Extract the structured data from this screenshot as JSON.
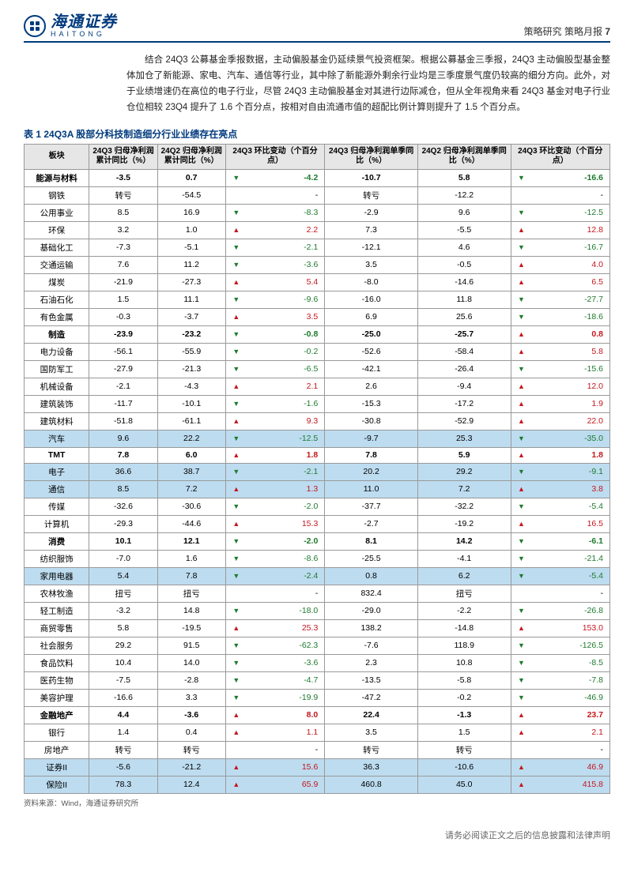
{
  "header": {
    "logo_cn": "海通证券",
    "logo_en": "HAITONG",
    "right_text": "策略研究 策略月报",
    "page_num": "7"
  },
  "body_para": "结合 24Q3 公募基金季报数据，主动偏股基金仍延续景气投资框架。根据公募基金三季报，24Q3 主动偏股型基金整体加仓了新能源、家电、汽车、通信等行业，其中除了新能源外剩余行业均是三季度景气度仍较高的细分方向。此外，对于业绩增速仍在高位的电子行业，尽管 24Q3 主动偏股基金对其进行边际减仓，但从全年视角来看 24Q3 基金对电子行业仓位相较 23Q4 提升了 1.6 个百分点，按相对自由流通市值的超配比例计算则提升了 1.5 个百分点。",
  "table": {
    "title": "表 1 24Q3A 股部分科技制造细分行业业绩存在亮点",
    "headers": [
      "板块",
      "24Q3 归母净利润累计同比（%）",
      "24Q2 归母净利润累计同比（%）",
      "24Q3 环比变动（个百分点）",
      "24Q3 归母净利润单季同比（%）",
      "24Q2 归母净利润单季同比（%）",
      "24Q3 环比变动（个百分点）"
    ],
    "rows": [
      {
        "name": "能源与材料",
        "c1": "-3.5",
        "c2": "0.7",
        "d1": "dn",
        "v1": "-4.2",
        "c4": "-10.7",
        "c5": "5.8",
        "d2": "dn",
        "v2": "-16.6",
        "bold": true
      },
      {
        "name": "钢铁",
        "c1": "转亏",
        "c2": "-54.5",
        "d1": "",
        "v1": "-",
        "c4": "转亏",
        "c5": "-12.2",
        "d2": "",
        "v2": "-"
      },
      {
        "name": "公用事业",
        "c1": "8.5",
        "c2": "16.9",
        "d1": "dn",
        "v1": "-8.3",
        "c4": "-2.9",
        "c5": "9.6",
        "d2": "dn",
        "v2": "-12.5"
      },
      {
        "name": "环保",
        "c1": "3.2",
        "c2": "1.0",
        "d1": "up",
        "v1": "2.2",
        "c4": "7.3",
        "c5": "-5.5",
        "d2": "up",
        "v2": "12.8"
      },
      {
        "name": "基础化工",
        "c1": "-7.3",
        "c2": "-5.1",
        "d1": "dn",
        "v1": "-2.1",
        "c4": "-12.1",
        "c5": "4.6",
        "d2": "dn",
        "v2": "-16.7"
      },
      {
        "name": "交通运输",
        "c1": "7.6",
        "c2": "11.2",
        "d1": "dn",
        "v1": "-3.6",
        "c4": "3.5",
        "c5": "-0.5",
        "d2": "up",
        "v2": "4.0"
      },
      {
        "name": "煤炭",
        "c1": "-21.9",
        "c2": "-27.3",
        "d1": "up",
        "v1": "5.4",
        "c4": "-8.0",
        "c5": "-14.6",
        "d2": "up",
        "v2": "6.5"
      },
      {
        "name": "石油石化",
        "c1": "1.5",
        "c2": "11.1",
        "d1": "dn",
        "v1": "-9.6",
        "c4": "-16.0",
        "c5": "11.8",
        "d2": "dn",
        "v2": "-27.7"
      },
      {
        "name": "有色金属",
        "c1": "-0.3",
        "c2": "-3.7",
        "d1": "up",
        "v1": "3.5",
        "c4": "6.9",
        "c5": "25.6",
        "d2": "dn",
        "v2": "-18.6"
      },
      {
        "name": "制造",
        "c1": "-23.9",
        "c2": "-23.2",
        "d1": "dn",
        "v1": "-0.8",
        "c4": "-25.0",
        "c5": "-25.7",
        "d2": "up",
        "v2": "0.8",
        "bold": true
      },
      {
        "name": "电力设备",
        "c1": "-56.1",
        "c2": "-55.9",
        "d1": "dn",
        "v1": "-0.2",
        "c4": "-52.6",
        "c5": "-58.4",
        "d2": "up",
        "v2": "5.8"
      },
      {
        "name": "国防军工",
        "c1": "-27.9",
        "c2": "-21.3",
        "d1": "dn",
        "v1": "-6.5",
        "c4": "-42.1",
        "c5": "-26.4",
        "d2": "dn",
        "v2": "-15.6"
      },
      {
        "name": "机械设备",
        "c1": "-2.1",
        "c2": "-4.3",
        "d1": "up",
        "v1": "2.1",
        "c4": "2.6",
        "c5": "-9.4",
        "d2": "up",
        "v2": "12.0"
      },
      {
        "name": "建筑装饰",
        "c1": "-11.7",
        "c2": "-10.1",
        "d1": "dn",
        "v1": "-1.6",
        "c4": "-15.3",
        "c5": "-17.2",
        "d2": "up",
        "v2": "1.9"
      },
      {
        "name": "建筑材料",
        "c1": "-51.8",
        "c2": "-61.1",
        "d1": "up",
        "v1": "9.3",
        "c4": "-30.8",
        "c5": "-52.9",
        "d2": "up",
        "v2": "22.0"
      },
      {
        "name": "汽车",
        "c1": "9.6",
        "c2": "22.2",
        "d1": "dn",
        "v1": "-12.5",
        "c4": "-9.7",
        "c5": "25.3",
        "d2": "dn",
        "v2": "-35.0",
        "hl": true
      },
      {
        "name": "TMT",
        "c1": "7.8",
        "c2": "6.0",
        "d1": "up",
        "v1": "1.8",
        "c4": "7.8",
        "c5": "5.9",
        "d2": "up",
        "v2": "1.8",
        "bold": true
      },
      {
        "name": "电子",
        "c1": "36.6",
        "c2": "38.7",
        "d1": "dn",
        "v1": "-2.1",
        "c4": "20.2",
        "c5": "29.2",
        "d2": "dn",
        "v2": "-9.1",
        "hl": true
      },
      {
        "name": "通信",
        "c1": "8.5",
        "c2": "7.2",
        "d1": "up",
        "v1": "1.3",
        "c4": "11.0",
        "c5": "7.2",
        "d2": "up",
        "v2": "3.8",
        "hl": true
      },
      {
        "name": "传媒",
        "c1": "-32.6",
        "c2": "-30.6",
        "d1": "dn",
        "v1": "-2.0",
        "c4": "-37.7",
        "c5": "-32.2",
        "d2": "dn",
        "v2": "-5.4"
      },
      {
        "name": "计算机",
        "c1": "-29.3",
        "c2": "-44.6",
        "d1": "up",
        "v1": "15.3",
        "c4": "-2.7",
        "c5": "-19.2",
        "d2": "up",
        "v2": "16.5"
      },
      {
        "name": "消费",
        "c1": "10.1",
        "c2": "12.1",
        "d1": "dn",
        "v1": "-2.0",
        "c4": "8.1",
        "c5": "14.2",
        "d2": "dn",
        "v2": "-6.1",
        "bold": true
      },
      {
        "name": "纺织服饰",
        "c1": "-7.0",
        "c2": "1.6",
        "d1": "dn",
        "v1": "-8.6",
        "c4": "-25.5",
        "c5": "-4.1",
        "d2": "dn",
        "v2": "-21.4"
      },
      {
        "name": "家用电器",
        "c1": "5.4",
        "c2": "7.8",
        "d1": "dn",
        "v1": "-2.4",
        "c4": "0.8",
        "c5": "6.2",
        "d2": "dn",
        "v2": "-5.4",
        "hl": true
      },
      {
        "name": "农林牧渔",
        "c1": "扭亏",
        "c2": "扭亏",
        "d1": "",
        "v1": "-",
        "c4": "832.4",
        "c5": "扭亏",
        "d2": "",
        "v2": "-"
      },
      {
        "name": "轻工制造",
        "c1": "-3.2",
        "c2": "14.8",
        "d1": "dn",
        "v1": "-18.0",
        "c4": "-29.0",
        "c5": "-2.2",
        "d2": "dn",
        "v2": "-26.8"
      },
      {
        "name": "商贸零售",
        "c1": "5.8",
        "c2": "-19.5",
        "d1": "up",
        "v1": "25.3",
        "c4": "138.2",
        "c5": "-14.8",
        "d2": "up",
        "v2": "153.0"
      },
      {
        "name": "社会服务",
        "c1": "29.2",
        "c2": "91.5",
        "d1": "dn",
        "v1": "-62.3",
        "c4": "-7.6",
        "c5": "118.9",
        "d2": "dn",
        "v2": "-126.5"
      },
      {
        "name": "食品饮料",
        "c1": "10.4",
        "c2": "14.0",
        "d1": "dn",
        "v1": "-3.6",
        "c4": "2.3",
        "c5": "10.8",
        "d2": "dn",
        "v2": "-8.5"
      },
      {
        "name": "医药生物",
        "c1": "-7.5",
        "c2": "-2.8",
        "d1": "dn",
        "v1": "-4.7",
        "c4": "-13.5",
        "c5": "-5.8",
        "d2": "dn",
        "v2": "-7.8"
      },
      {
        "name": "美容护理",
        "c1": "-16.6",
        "c2": "3.3",
        "d1": "dn",
        "v1": "-19.9",
        "c4": "-47.2",
        "c5": "-0.2",
        "d2": "dn",
        "v2": "-46.9"
      },
      {
        "name": "金融地产",
        "c1": "4.4",
        "c2": "-3.6",
        "d1": "up",
        "v1": "8.0",
        "c4": "22.4",
        "c5": "-1.3",
        "d2": "up",
        "v2": "23.7",
        "bold": true
      },
      {
        "name": "银行",
        "c1": "1.4",
        "c2": "0.4",
        "d1": "up",
        "v1": "1.1",
        "c4": "3.5",
        "c5": "1.5",
        "d2": "up",
        "v2": "2.1"
      },
      {
        "name": "房地产",
        "c1": "转亏",
        "c2": "转亏",
        "d1": "",
        "v1": "-",
        "c4": "转亏",
        "c5": "转亏",
        "d2": "",
        "v2": "-"
      },
      {
        "name": "证券II",
        "c1": "-5.6",
        "c2": "-21.2",
        "d1": "up",
        "v1": "15.6",
        "c4": "36.3",
        "c5": "-10.6",
        "d2": "up",
        "v2": "46.9",
        "hl": true
      },
      {
        "name": "保险II",
        "c1": "78.3",
        "c2": "12.4",
        "d1": "up",
        "v1": "65.9",
        "c4": "460.8",
        "c5": "45.0",
        "d2": "up",
        "v2": "415.8",
        "hl": true
      }
    ],
    "source": "资料来源：Wind，海通证券研究所"
  },
  "footer": "请务必阅读正文之后的信息披露和法律声明"
}
